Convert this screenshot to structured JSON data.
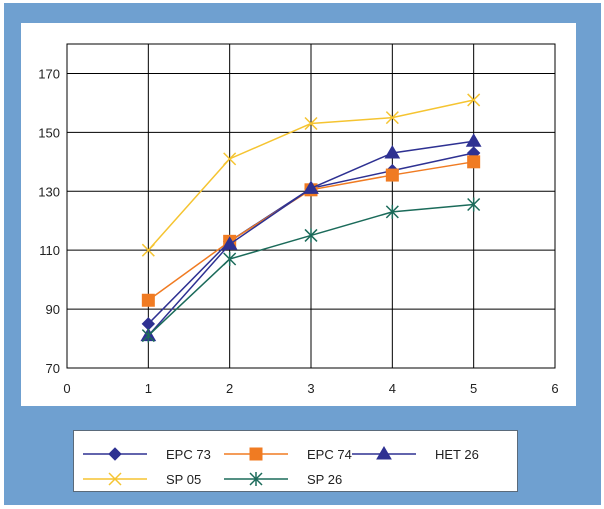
{
  "chart_data": {
    "type": "line",
    "x": [
      1,
      2,
      3,
      4,
      5
    ],
    "xlim": [
      0,
      6
    ],
    "ylim": [
      70,
      180
    ],
    "x_ticks": [
      0,
      1,
      2,
      3,
      4,
      5,
      6
    ],
    "y_ticks": [
      70,
      90,
      110,
      130,
      150,
      170
    ],
    "grid": true,
    "legend_position": "bottom",
    "series": [
      {
        "name": "EPC 73",
        "values": [
          85,
          113,
          131,
          137,
          143
        ],
        "color": "#2e3192",
        "marker": "diamond"
      },
      {
        "name": "EPC 74",
        "values": [
          93,
          113,
          130.5,
          135.5,
          140
        ],
        "color": "#f07b22",
        "marker": "square"
      },
      {
        "name": "HET 26",
        "values": [
          81,
          112,
          131,
          143,
          147
        ],
        "color": "#2e3192",
        "marker": "triangle"
      },
      {
        "name": "SP 05",
        "values": [
          110,
          141,
          153,
          155,
          161
        ],
        "color": "#f5c431",
        "marker": "x"
      },
      {
        "name": "SP 26",
        "values": [
          81,
          107,
          115,
          123,
          125.5
        ],
        "color": "#1b6b5a",
        "marker": "star"
      }
    ]
  }
}
